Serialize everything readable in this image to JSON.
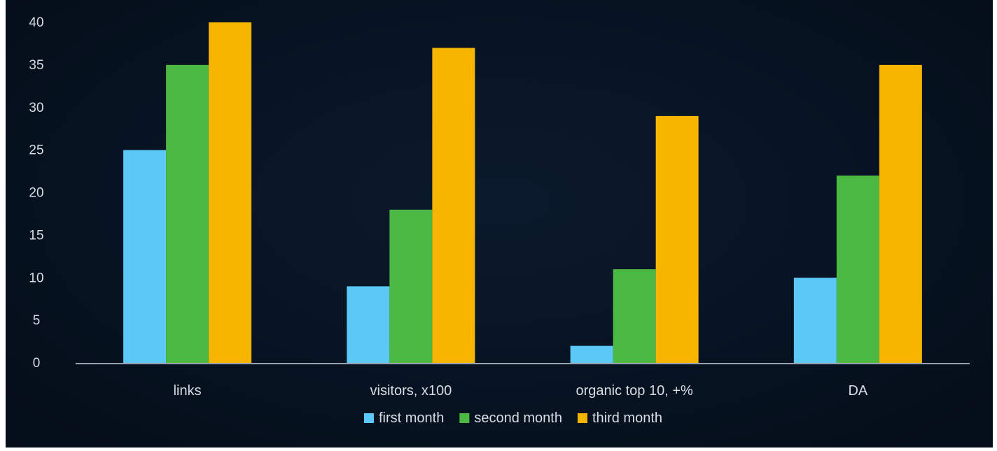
{
  "chart_data": {
    "type": "bar",
    "categories": [
      "links",
      "visitors, x100",
      "organic top 10, +%",
      "DA"
    ],
    "series": [
      {
        "name": "first month",
        "values": [
          25,
          9,
          2,
          10
        ],
        "color": "#5bc8f7"
      },
      {
        "name": "second month",
        "values": [
          35,
          18,
          11,
          22
        ],
        "color": "#4cb944"
      },
      {
        "name": "third month",
        "values": [
          40,
          37,
          29,
          35
        ],
        "color": "#f7b500"
      }
    ],
    "yticks": [
      "0",
      "5",
      "10",
      "15",
      "20",
      "25",
      "30",
      "35",
      "40"
    ],
    "ylim": [
      0,
      40
    ],
    "grid": false,
    "legend": "bottom",
    "background": "#071322",
    "axis_color": "#9aa3ad"
  }
}
